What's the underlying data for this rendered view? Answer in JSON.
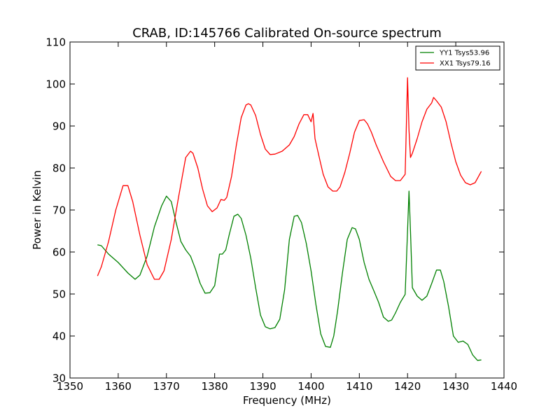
{
  "chart_data": {
    "type": "line",
    "title": "CRAB, ID:145766 Calibrated On-source spectrum",
    "xlabel": "Frequency (MHz)",
    "ylabel": "Power in Kelvin",
    "xlim": [
      1350,
      1440
    ],
    "ylim": [
      30,
      110
    ],
    "xticks": [
      1350,
      1360,
      1370,
      1380,
      1390,
      1400,
      1410,
      1420,
      1430,
      1440
    ],
    "yticks": [
      30,
      40,
      50,
      60,
      70,
      80,
      90,
      100,
      110
    ],
    "legend_position": "top-right",
    "grid": false,
    "series": [
      {
        "name": "YY1 Tsys53.96",
        "color": "#008000",
        "x": [
          1355.7,
          1356.5,
          1358,
          1360,
          1362,
          1363.5,
          1364.5,
          1366,
          1367.5,
          1369,
          1370,
          1371,
          1372,
          1373,
          1374,
          1375,
          1376,
          1377,
          1378,
          1379,
          1380,
          1381,
          1381.6,
          1382.3,
          1383,
          1384,
          1384.8,
          1385.5,
          1386.5,
          1387.5,
          1388.5,
          1389.5,
          1390.5,
          1391.5,
          1392.5,
          1393.5,
          1394.5,
          1395.5,
          1396.5,
          1397.2,
          1398,
          1399,
          1400,
          1401,
          1402,
          1403,
          1404,
          1404.7,
          1405.5,
          1406.5,
          1407.5,
          1408.5,
          1409.2,
          1410,
          1411,
          1412,
          1413,
          1414,
          1415,
          1416,
          1416.7,
          1417.5,
          1418.5,
          1419.5,
          1420,
          1420.3,
          1420.6,
          1421,
          1422,
          1423,
          1424,
          1425,
          1426,
          1426.8,
          1427.5,
          1428.5,
          1429.5,
          1430.5,
          1431.5,
          1432.5,
          1433.5,
          1434.5,
          1435.3
        ],
        "y": [
          61.7,
          61.5,
          59.5,
          57.5,
          55,
          53.5,
          54.5,
          59,
          66,
          71,
          73.3,
          72,
          67,
          62.5,
          60.5,
          59,
          56,
          52.5,
          50.2,
          50.3,
          52,
          59.5,
          59.5,
          60.5,
          64,
          68.5,
          69,
          68,
          64,
          58.5,
          51.5,
          45,
          42.2,
          41.7,
          42,
          44,
          51,
          63,
          68.5,
          68.7,
          67,
          62,
          55.5,
          47.5,
          40.5,
          37.5,
          37.3,
          40,
          46,
          55,
          63,
          65.8,
          65.5,
          63,
          57.5,
          53.5,
          50.8,
          48,
          44.5,
          43.5,
          43.8,
          45.5,
          48,
          49.9,
          65,
          74.5,
          65,
          51.5,
          49.5,
          48.5,
          49.5,
          52.5,
          55.7,
          55.7,
          53,
          47,
          40,
          38.5,
          38.8,
          38,
          35.5,
          34.2,
          34.3
        ]
      },
      {
        "name": "XX1 Tsys79.16",
        "color": "#ff0000",
        "x": [
          1355.7,
          1356.5,
          1358,
          1359.5,
          1361,
          1362,
          1363,
          1364.5,
          1366,
          1367.5,
          1368.5,
          1369.5,
          1371,
          1372.5,
          1374,
          1375,
          1375.5,
          1376.5,
          1377.5,
          1378.5,
          1379.5,
          1380.5,
          1381.3,
          1382,
          1382.5,
          1383.5,
          1384.5,
          1385.5,
          1386.5,
          1387,
          1387.5,
          1388.5,
          1389.5,
          1390.5,
          1391.5,
          1392.5,
          1394,
          1395.5,
          1396.5,
          1397.5,
          1398.5,
          1399.3,
          1400,
          1400.4,
          1400.8,
          1401.2,
          1401.8,
          1402.5,
          1403.5,
          1404.5,
          1405.3,
          1406,
          1407,
          1408,
          1409,
          1410,
          1411,
          1411.7,
          1412.5,
          1413.5,
          1415,
          1416.5,
          1417.5,
          1418.5,
          1419.5,
          1420,
          1420.3,
          1420.6,
          1421,
          1422,
          1423,
          1424,
          1425,
          1425.4,
          1426,
          1427,
          1428,
          1429,
          1430,
          1431,
          1432,
          1433,
          1434,
          1435.3
        ],
        "y": [
          54.3,
          56.5,
          62.5,
          70,
          75.8,
          75.8,
          72,
          64,
          57,
          53.5,
          53.5,
          55.5,
          63,
          73,
          82.5,
          84,
          83.5,
          80,
          75,
          71,
          69.6,
          70.5,
          72.5,
          72.3,
          73,
          78,
          85.5,
          92,
          95,
          95.3,
          95,
          92.5,
          88,
          84.5,
          83.2,
          83.3,
          84,
          85.5,
          87.5,
          90.5,
          92.7,
          92.7,
          91,
          93,
          87,
          85,
          82,
          78.5,
          75.5,
          74.5,
          74.5,
          75.5,
          79,
          83.5,
          88.5,
          91.3,
          91.5,
          90.5,
          88.5,
          85.5,
          81.5,
          78,
          77,
          77,
          78.5,
          101.5,
          89,
          82.5,
          83.5,
          87,
          91,
          94,
          95.5,
          96.8,
          96,
          94.5,
          91,
          86,
          81.5,
          78.3,
          76.5,
          76,
          76.5,
          79.2
        ]
      }
    ]
  }
}
